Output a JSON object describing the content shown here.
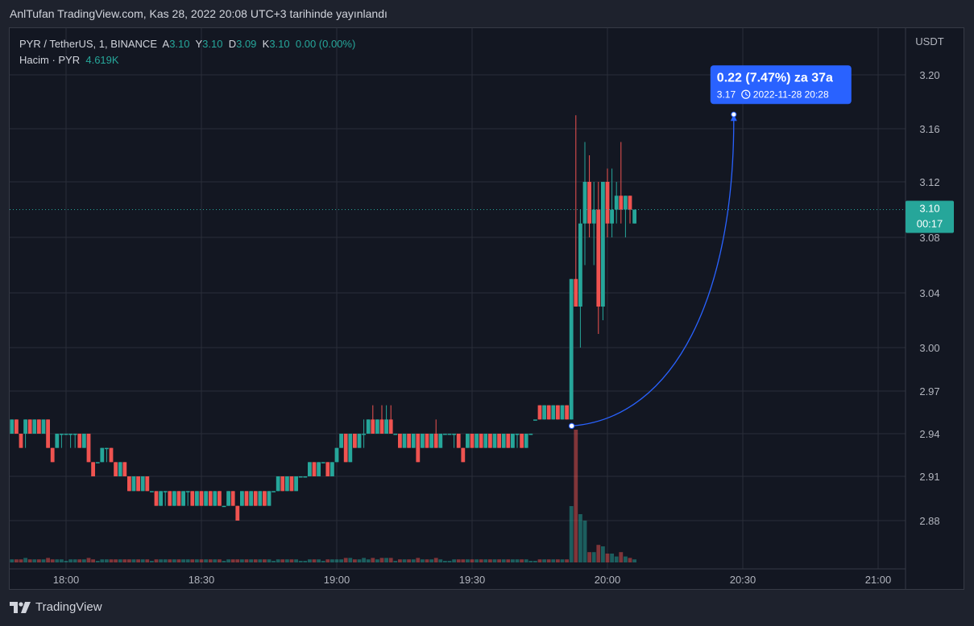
{
  "header": {
    "published": "AnlTufan TradingView.com, Kas 28, 2022 20:08 UTC+3 tarihinde yayınlandı"
  },
  "legend": {
    "symbol": "PYR / TetherUS, 1, BINANCE",
    "a_label": "A",
    "a_value": "3.10",
    "y_label": "Y",
    "y_value": "3.10",
    "d_label": "D",
    "d_value": "3.09",
    "k_label": "K",
    "k_value": "3.10",
    "change": "0.00 (0.00%)",
    "volume_label": "Hacim · PYR",
    "volume_value": "4.619K"
  },
  "price_label": {
    "price": "3.10",
    "countdown": "00:17"
  },
  "annotation": {
    "line1": "0.22 (7.47%) za 37a",
    "price": "3.17",
    "time": "2022-11-28  20:28"
  },
  "brand": {
    "name": "TradingView"
  },
  "colors": {
    "up": "#26a69a",
    "down": "#ef5350",
    "bg": "#131722",
    "grid": "#2a2e39",
    "accent": "#2962ff"
  },
  "chart_data": {
    "type": "candlestick",
    "currency": "USDT",
    "y_ticks": [
      "3.20",
      "3.16",
      "3.12",
      "3.08",
      "3.04",
      "3.00",
      "2.97",
      "2.94",
      "2.91",
      "2.88"
    ],
    "x_ticks": [
      "18:00",
      "18:30",
      "19:00",
      "19:30",
      "20:00",
      "20:30",
      "21:00"
    ],
    "last_price": 3.1,
    "candles": [
      {
        "t": "17:48",
        "o": 2.94,
        "h": 2.95,
        "l": 2.94,
        "c": 2.95
      },
      {
        "t": "17:49",
        "o": 2.95,
        "h": 2.95,
        "l": 2.94,
        "c": 2.94
      },
      {
        "t": "17:50",
        "o": 2.94,
        "h": 2.94,
        "l": 2.93,
        "c": 2.93
      },
      {
        "t": "17:51",
        "o": 2.94,
        "h": 2.95,
        "l": 2.93,
        "c": 2.95
      },
      {
        "t": "17:52",
        "o": 2.95,
        "h": 2.95,
        "l": 2.94,
        "c": 2.94
      },
      {
        "t": "17:53",
        "o": 2.94,
        "h": 2.95,
        "l": 2.94,
        "c": 2.95
      },
      {
        "t": "17:54",
        "o": 2.95,
        "h": 2.95,
        "l": 2.94,
        "c": 2.94
      },
      {
        "t": "17:55",
        "o": 2.94,
        "h": 2.95,
        "l": 2.94,
        "c": 2.95
      },
      {
        "t": "17:56",
        "o": 2.95,
        "h": 2.95,
        "l": 2.93,
        "c": 2.93
      },
      {
        "t": "17:57",
        "o": 2.93,
        "h": 2.93,
        "l": 2.92,
        "c": 2.92
      },
      {
        "t": "17:58",
        "o": 2.93,
        "h": 2.94,
        "l": 2.93,
        "c": 2.94
      },
      {
        "t": "17:59",
        "o": 2.94,
        "h": 2.94,
        "l": 2.93,
        "c": 2.94
      },
      {
        "t": "18:00",
        "o": 2.94,
        "h": 2.94,
        "l": 2.94,
        "c": 2.94
      },
      {
        "t": "18:01",
        "o": 2.94,
        "h": 2.94,
        "l": 2.93,
        "c": 2.94
      },
      {
        "t": "18:02",
        "o": 2.94,
        "h": 2.94,
        "l": 2.93,
        "c": 2.94
      },
      {
        "t": "18:03",
        "o": 2.94,
        "h": 2.94,
        "l": 2.93,
        "c": 2.93
      },
      {
        "t": "18:04",
        "o": 2.93,
        "h": 2.94,
        "l": 2.93,
        "c": 2.94
      },
      {
        "t": "18:05",
        "o": 2.94,
        "h": 2.94,
        "l": 2.92,
        "c": 2.92
      },
      {
        "t": "18:06",
        "o": 2.92,
        "h": 2.92,
        "l": 2.91,
        "c": 2.91
      },
      {
        "t": "18:07",
        "o": 2.92,
        "h": 2.92,
        "l": 2.92,
        "c": 2.92
      },
      {
        "t": "18:08",
        "o": 2.92,
        "h": 2.93,
        "l": 2.92,
        "c": 2.93
      },
      {
        "t": "18:09",
        "o": 2.93,
        "h": 2.93,
        "l": 2.92,
        "c": 2.93
      },
      {
        "t": "18:10",
        "o": 2.93,
        "h": 2.93,
        "l": 2.92,
        "c": 2.92
      },
      {
        "t": "18:11",
        "o": 2.92,
        "h": 2.92,
        "l": 2.91,
        "c": 2.91
      },
      {
        "t": "18:12",
        "o": 2.91,
        "h": 2.92,
        "l": 2.91,
        "c": 2.92
      },
      {
        "t": "18:13",
        "o": 2.92,
        "h": 2.92,
        "l": 2.91,
        "c": 2.91
      },
      {
        "t": "18:14",
        "o": 2.91,
        "h": 2.91,
        "l": 2.9,
        "c": 2.9
      },
      {
        "t": "18:15",
        "o": 2.9,
        "h": 2.91,
        "l": 2.9,
        "c": 2.91
      },
      {
        "t": "18:16",
        "o": 2.91,
        "h": 2.91,
        "l": 2.9,
        "c": 2.9
      },
      {
        "t": "18:17",
        "o": 2.9,
        "h": 2.91,
        "l": 2.9,
        "c": 2.91
      },
      {
        "t": "18:18",
        "o": 2.91,
        "h": 2.91,
        "l": 2.9,
        "c": 2.9
      },
      {
        "t": "18:19",
        "o": 2.9,
        "h": 2.9,
        "l": 2.9,
        "c": 2.9
      },
      {
        "t": "18:20",
        "o": 2.9,
        "h": 2.9,
        "l": 2.89,
        "c": 2.89
      },
      {
        "t": "18:21",
        "o": 2.89,
        "h": 2.9,
        "l": 2.89,
        "c": 2.9
      },
      {
        "t": "18:22",
        "o": 2.9,
        "h": 2.9,
        "l": 2.89,
        "c": 2.9
      },
      {
        "t": "18:23",
        "o": 2.9,
        "h": 2.9,
        "l": 2.89,
        "c": 2.89
      },
      {
        "t": "18:24",
        "o": 2.89,
        "h": 2.9,
        "l": 2.89,
        "c": 2.9
      },
      {
        "t": "18:25",
        "o": 2.9,
        "h": 2.9,
        "l": 2.89,
        "c": 2.89
      },
      {
        "t": "18:26",
        "o": 2.89,
        "h": 2.9,
        "l": 2.89,
        "c": 2.9
      },
      {
        "t": "18:27",
        "o": 2.9,
        "h": 2.9,
        "l": 2.89,
        "c": 2.9
      },
      {
        "t": "18:28",
        "o": 2.9,
        "h": 2.9,
        "l": 2.89,
        "c": 2.89
      },
      {
        "t": "18:29",
        "o": 2.89,
        "h": 2.9,
        "l": 2.89,
        "c": 2.9
      },
      {
        "t": "18:30",
        "o": 2.9,
        "h": 2.9,
        "l": 2.89,
        "c": 2.89
      },
      {
        "t": "18:31",
        "o": 2.89,
        "h": 2.9,
        "l": 2.89,
        "c": 2.9
      },
      {
        "t": "18:32",
        "o": 2.9,
        "h": 2.9,
        "l": 2.89,
        "c": 2.89
      },
      {
        "t": "18:33",
        "o": 2.89,
        "h": 2.9,
        "l": 2.89,
        "c": 2.9
      },
      {
        "t": "18:34",
        "o": 2.9,
        "h": 2.9,
        "l": 2.89,
        "c": 2.89
      },
      {
        "t": "18:35",
        "o": 2.89,
        "h": 2.89,
        "l": 2.89,
        "c": 2.89
      },
      {
        "t": "18:36",
        "o": 2.89,
        "h": 2.9,
        "l": 2.89,
        "c": 2.9
      },
      {
        "t": "18:37",
        "o": 2.9,
        "h": 2.9,
        "l": 2.89,
        "c": 2.89
      },
      {
        "t": "18:38",
        "o": 2.89,
        "h": 2.89,
        "l": 2.88,
        "c": 2.88
      },
      {
        "t": "18:39",
        "o": 2.89,
        "h": 2.9,
        "l": 2.89,
        "c": 2.9
      },
      {
        "t": "18:40",
        "o": 2.9,
        "h": 2.9,
        "l": 2.89,
        "c": 2.89
      },
      {
        "t": "18:41",
        "o": 2.89,
        "h": 2.9,
        "l": 2.89,
        "c": 2.9
      },
      {
        "t": "18:42",
        "o": 2.9,
        "h": 2.9,
        "l": 2.89,
        "c": 2.89
      },
      {
        "t": "18:43",
        "o": 2.89,
        "h": 2.9,
        "l": 2.89,
        "c": 2.9
      },
      {
        "t": "18:44",
        "o": 2.9,
        "h": 2.9,
        "l": 2.89,
        "c": 2.89
      },
      {
        "t": "18:45",
        "o": 2.89,
        "h": 2.9,
        "l": 2.89,
        "c": 2.9
      },
      {
        "t": "18:46",
        "o": 2.9,
        "h": 2.9,
        "l": 2.9,
        "c": 2.9
      },
      {
        "t": "18:47",
        "o": 2.9,
        "h": 2.91,
        "l": 2.9,
        "c": 2.91
      },
      {
        "t": "18:48",
        "o": 2.91,
        "h": 2.91,
        "l": 2.9,
        "c": 2.9
      },
      {
        "t": "18:49",
        "o": 2.9,
        "h": 2.91,
        "l": 2.9,
        "c": 2.91
      },
      {
        "t": "18:50",
        "o": 2.91,
        "h": 2.91,
        "l": 2.9,
        "c": 2.9
      },
      {
        "t": "18:51",
        "o": 2.9,
        "h": 2.91,
        "l": 2.9,
        "c": 2.91
      },
      {
        "t": "18:52",
        "o": 2.91,
        "h": 2.91,
        "l": 2.91,
        "c": 2.91
      },
      {
        "t": "18:53",
        "o": 2.91,
        "h": 2.91,
        "l": 2.91,
        "c": 2.91
      },
      {
        "t": "18:54",
        "o": 2.91,
        "h": 2.92,
        "l": 2.91,
        "c": 2.92
      },
      {
        "t": "18:55",
        "o": 2.92,
        "h": 2.92,
        "l": 2.91,
        "c": 2.91
      },
      {
        "t": "18:56",
        "o": 2.91,
        "h": 2.92,
        "l": 2.91,
        "c": 2.92
      },
      {
        "t": "18:57",
        "o": 2.92,
        "h": 2.92,
        "l": 2.92,
        "c": 2.92
      },
      {
        "t": "18:58",
        "o": 2.92,
        "h": 2.92,
        "l": 2.91,
        "c": 2.91
      },
      {
        "t": "18:59",
        "o": 2.91,
        "h": 2.92,
        "l": 2.91,
        "c": 2.92
      },
      {
        "t": "19:00",
        "o": 2.92,
        "h": 2.93,
        "l": 2.92,
        "c": 2.93
      },
      {
        "t": "19:01",
        "o": 2.93,
        "h": 2.94,
        "l": 2.93,
        "c": 2.94
      },
      {
        "t": "19:02",
        "o": 2.94,
        "h": 2.94,
        "l": 2.92,
        "c": 2.92
      },
      {
        "t": "19:03",
        "o": 2.92,
        "h": 2.94,
        "l": 2.92,
        "c": 2.94
      },
      {
        "t": "19:04",
        "o": 2.94,
        "h": 2.94,
        "l": 2.93,
        "c": 2.93
      },
      {
        "t": "19:05",
        "o": 2.93,
        "h": 2.94,
        "l": 2.93,
        "c": 2.94
      },
      {
        "t": "19:06",
        "o": 2.94,
        "h": 2.95,
        "l": 2.93,
        "c": 2.94
      },
      {
        "t": "19:07",
        "o": 2.94,
        "h": 2.95,
        "l": 2.94,
        "c": 2.95
      },
      {
        "t": "19:08",
        "o": 2.95,
        "h": 2.96,
        "l": 2.94,
        "c": 2.94
      },
      {
        "t": "19:09",
        "o": 2.94,
        "h": 2.95,
        "l": 2.94,
        "c": 2.95
      },
      {
        "t": "19:10",
        "o": 2.95,
        "h": 2.96,
        "l": 2.94,
        "c": 2.94
      },
      {
        "t": "19:11",
        "o": 2.94,
        "h": 2.96,
        "l": 2.94,
        "c": 2.95
      },
      {
        "t": "19:12",
        "o": 2.95,
        "h": 2.96,
        "l": 2.94,
        "c": 2.94
      },
      {
        "t": "19:13",
        "o": 2.94,
        "h": 2.94,
        "l": 2.94,
        "c": 2.94
      },
      {
        "t": "19:14",
        "o": 2.94,
        "h": 2.94,
        "l": 2.93,
        "c": 2.93
      },
      {
        "t": "19:15",
        "o": 2.93,
        "h": 2.94,
        "l": 2.93,
        "c": 2.94
      },
      {
        "t": "19:16",
        "o": 2.94,
        "h": 2.94,
        "l": 2.93,
        "c": 2.93
      },
      {
        "t": "19:17",
        "o": 2.93,
        "h": 2.94,
        "l": 2.93,
        "c": 2.94
      },
      {
        "t": "19:18",
        "o": 2.94,
        "h": 2.94,
        "l": 2.92,
        "c": 2.92
      },
      {
        "t": "19:19",
        "o": 2.93,
        "h": 2.94,
        "l": 2.93,
        "c": 2.94
      },
      {
        "t": "19:20",
        "o": 2.94,
        "h": 2.94,
        "l": 2.93,
        "c": 2.93
      },
      {
        "t": "19:21",
        "o": 2.93,
        "h": 2.94,
        "l": 2.93,
        "c": 2.94
      },
      {
        "t": "19:22",
        "o": 2.94,
        "h": 2.95,
        "l": 2.93,
        "c": 2.93
      },
      {
        "t": "19:23",
        "o": 2.93,
        "h": 2.94,
        "l": 2.93,
        "c": 2.94
      },
      {
        "t": "19:24",
        "o": 2.94,
        "h": 2.94,
        "l": 2.94,
        "c": 2.94
      },
      {
        "t": "19:25",
        "o": 2.94,
        "h": 2.94,
        "l": 2.94,
        "c": 2.94
      },
      {
        "t": "19:26",
        "o": 2.94,
        "h": 2.94,
        "l": 2.93,
        "c": 2.94
      },
      {
        "t": "19:27",
        "o": 2.94,
        "h": 2.94,
        "l": 2.93,
        "c": 2.93
      },
      {
        "t": "19:28",
        "o": 2.93,
        "h": 2.93,
        "l": 2.92,
        "c": 2.92
      },
      {
        "t": "19:29",
        "o": 2.93,
        "h": 2.94,
        "l": 2.93,
        "c": 2.94
      },
      {
        "t": "19:30",
        "o": 2.94,
        "h": 2.94,
        "l": 2.93,
        "c": 2.93
      },
      {
        "t": "19:31",
        "o": 2.93,
        "h": 2.94,
        "l": 2.93,
        "c": 2.94
      },
      {
        "t": "19:32",
        "o": 2.94,
        "h": 2.94,
        "l": 2.93,
        "c": 2.93
      },
      {
        "t": "19:33",
        "o": 2.93,
        "h": 2.94,
        "l": 2.93,
        "c": 2.94
      },
      {
        "t": "19:34",
        "o": 2.94,
        "h": 2.94,
        "l": 2.93,
        "c": 2.93
      },
      {
        "t": "19:35",
        "o": 2.93,
        "h": 2.94,
        "l": 2.93,
        "c": 2.94
      },
      {
        "t": "19:36",
        "o": 2.94,
        "h": 2.94,
        "l": 2.93,
        "c": 2.93
      },
      {
        "t": "19:37",
        "o": 2.93,
        "h": 2.94,
        "l": 2.93,
        "c": 2.94
      },
      {
        "t": "19:38",
        "o": 2.94,
        "h": 2.94,
        "l": 2.93,
        "c": 2.93
      },
      {
        "t": "19:39",
        "o": 2.93,
        "h": 2.94,
        "l": 2.93,
        "c": 2.94
      },
      {
        "t": "19:40",
        "o": 2.94,
        "h": 2.94,
        "l": 2.93,
        "c": 2.94
      },
      {
        "t": "19:41",
        "o": 2.94,
        "h": 2.94,
        "l": 2.93,
        "c": 2.93
      },
      {
        "t": "19:42",
        "o": 2.93,
        "h": 2.94,
        "l": 2.93,
        "c": 2.94
      },
      {
        "t": "19:43",
        "o": 2.94,
        "h": 2.94,
        "l": 2.94,
        "c": 2.94
      },
      {
        "t": "19:44",
        "o": 2.95,
        "h": 2.95,
        "l": 2.95,
        "c": 2.95
      },
      {
        "t": "19:45",
        "o": 2.96,
        "h": 2.96,
        "l": 2.95,
        "c": 2.95
      },
      {
        "t": "19:46",
        "o": 2.95,
        "h": 2.96,
        "l": 2.95,
        "c": 2.96
      },
      {
        "t": "19:47",
        "o": 2.96,
        "h": 2.96,
        "l": 2.95,
        "c": 2.95
      },
      {
        "t": "19:48",
        "o": 2.95,
        "h": 2.96,
        "l": 2.95,
        "c": 2.96
      },
      {
        "t": "19:49",
        "o": 2.96,
        "h": 2.96,
        "l": 2.95,
        "c": 2.95
      },
      {
        "t": "19:50",
        "o": 2.95,
        "h": 2.96,
        "l": 2.95,
        "c": 2.96
      },
      {
        "t": "19:51",
        "o": 2.96,
        "h": 2.96,
        "l": 2.95,
        "c": 2.95
      },
      {
        "t": "19:52",
        "o": 2.95,
        "h": 3.05,
        "l": 2.95,
        "c": 3.05
      },
      {
        "t": "19:53",
        "o": 3.05,
        "h": 3.17,
        "l": 3.03,
        "c": 3.03
      },
      {
        "t": "19:54",
        "o": 3.03,
        "h": 3.1,
        "l": 3.0,
        "c": 3.09
      },
      {
        "t": "19:55",
        "o": 3.09,
        "h": 3.15,
        "l": 3.06,
        "c": 3.12
      },
      {
        "t": "19:56",
        "o": 3.12,
        "h": 3.14,
        "l": 3.08,
        "c": 3.09
      },
      {
        "t": "19:57",
        "o": 3.09,
        "h": 3.12,
        "l": 3.06,
        "c": 3.1
      },
      {
        "t": "19:58",
        "o": 3.1,
        "h": 3.12,
        "l": 3.01,
        "c": 3.03
      },
      {
        "t": "19:59",
        "o": 3.03,
        "h": 3.12,
        "l": 3.02,
        "c": 3.12
      },
      {
        "t": "20:00",
        "o": 3.12,
        "h": 3.13,
        "l": 3.08,
        "c": 3.09
      },
      {
        "t": "20:01",
        "o": 3.09,
        "h": 3.13,
        "l": 3.08,
        "c": 3.1
      },
      {
        "t": "20:02",
        "o": 3.1,
        "h": 3.12,
        "l": 3.09,
        "c": 3.11
      },
      {
        "t": "20:03",
        "o": 3.11,
        "h": 3.15,
        "l": 3.09,
        "c": 3.1
      },
      {
        "t": "20:04",
        "o": 3.1,
        "h": 3.11,
        "l": 3.08,
        "c": 3.11
      },
      {
        "t": "20:05",
        "o": 3.11,
        "h": 3.11,
        "l": 3.09,
        "c": 3.1
      },
      {
        "t": "20:06",
        "o": 3.09,
        "h": 3.1,
        "l": 3.09,
        "c": 3.1
      }
    ]
  }
}
